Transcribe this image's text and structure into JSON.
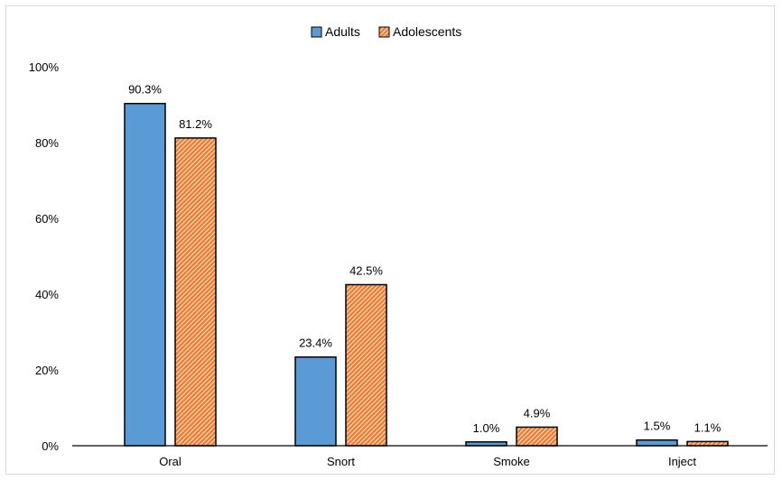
{
  "chart_data": {
    "type": "bar",
    "title": "",
    "xlabel": "",
    "ylabel": "",
    "categories": [
      "Oral",
      "Snort",
      "Smoke",
      "Inject"
    ],
    "series": [
      {
        "name": "Adults",
        "color": "#5b9bd5",
        "values": [
          90.3,
          23.4,
          1.0,
          1.5
        ],
        "labels": [
          "90.3%",
          "23.4%",
          "1.0%",
          "1.5%"
        ]
      },
      {
        "name": "Adolescents",
        "color": "#ed7d31",
        "values": [
          81.2,
          42.5,
          4.9,
          1.1
        ],
        "labels": [
          "81.2%",
          "42.5%",
          "4.9%",
          "1.1%"
        ]
      }
    ],
    "ylim": [
      0,
      100
    ],
    "yticks": [
      "0%",
      "20%",
      "40%",
      "60%",
      "80%",
      "100%"
    ],
    "ytick_values": [
      0,
      20,
      40,
      60,
      80,
      100
    ],
    "grid": false,
    "legend_position": "top-center"
  }
}
